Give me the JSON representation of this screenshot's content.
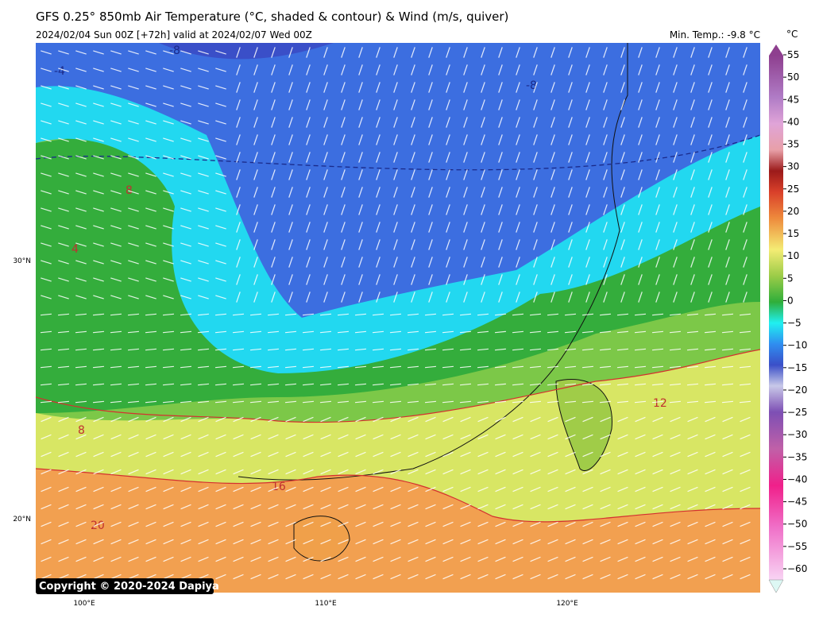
{
  "header": {
    "title": "GFS 0.25° 850mb Air Temperature (°C, shaded & contour) & Wind (m/s, quiver)",
    "subtitle": "2024/02/04 Sun 00Z [+72h] valid at 2024/02/07 Wed 00Z",
    "min_temp": "Min. Temp.: -9.8 °C"
  },
  "colorbar": {
    "unit": "°C",
    "ticks": [
      "55",
      "50",
      "45",
      "40",
      "35",
      "30",
      "25",
      "20",
      "15",
      "10",
      "5",
      "0",
      "−5",
      "−10",
      "−15",
      "−20",
      "−25",
      "−30",
      "−35",
      "−40",
      "−45",
      "−50",
      "−55",
      "−60"
    ]
  },
  "map": {
    "lat_labels": [
      "30°N",
      "20°N"
    ],
    "lon_labels": [
      "100°E",
      "110°E",
      "120°E"
    ],
    "contour_labels": [
      "-8",
      "-8",
      "-4",
      "8",
      "4",
      "8",
      "12",
      "16",
      "20"
    ]
  },
  "footer": {
    "copyright": "Copyright © 2020-2024 Dapiya"
  }
}
